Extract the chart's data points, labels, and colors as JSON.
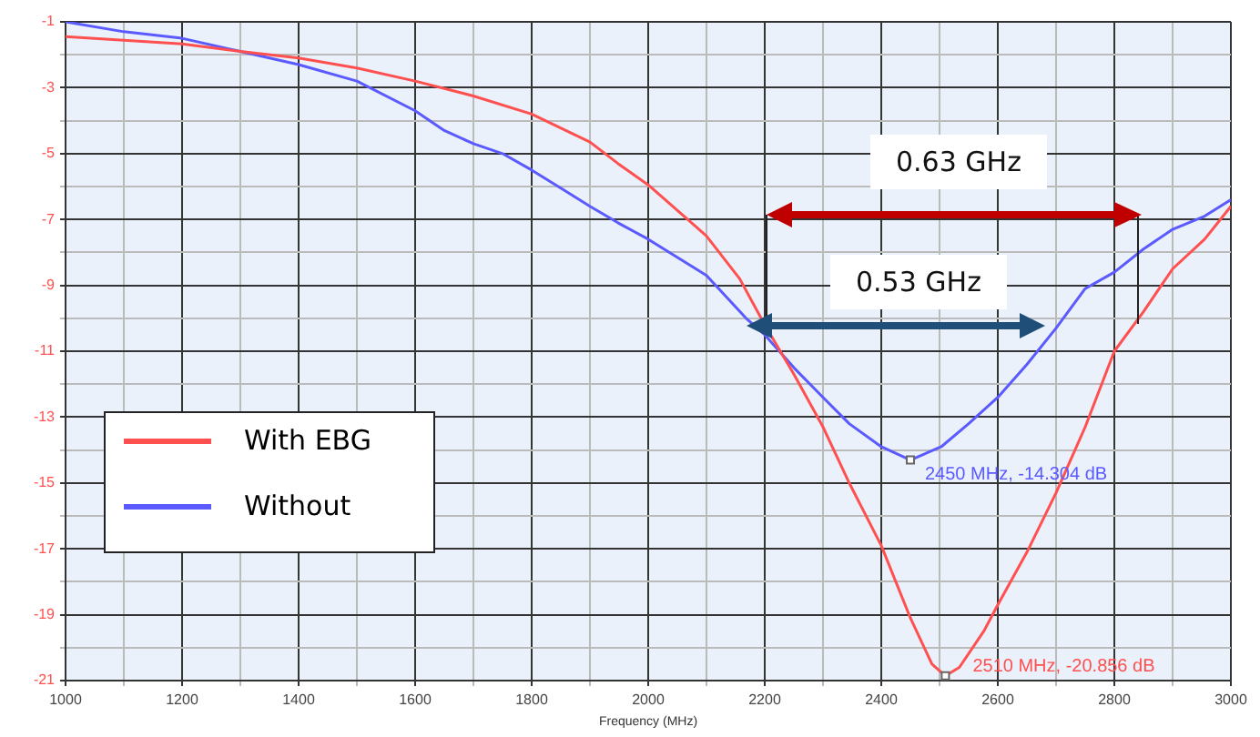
{
  "chart_data": {
    "type": "line",
    "xlabel": "Frequency (MHz)",
    "xlim": [
      1000,
      3000
    ],
    "xticks": [
      1000,
      {
        "value": 1100,
        "label": null
      },
      1200,
      {
        "value": 1300,
        "label": null
      },
      1400,
      {
        "value": 1500,
        "label": null
      },
      1600,
      {
        "value": 1700,
        "label": null
      },
      1800,
      {
        "value": 1900,
        "label": null
      },
      2000,
      {
        "value": 2100,
        "label": null
      },
      2200,
      {
        "value": 2300,
        "label": null
      },
      2400,
      {
        "value": 2500,
        "label": null
      },
      2600,
      {
        "value": 2700,
        "label": null
      },
      2800,
      {
        "value": 2900,
        "label": null
      },
      3000
    ],
    "ylim": [
      -21,
      -1
    ],
    "yticks": [
      -21,
      {
        "value": -20,
        "label": null
      },
      -19,
      {
        "value": -18,
        "label": null
      },
      -17,
      {
        "value": -16,
        "label": null
      },
      -15,
      {
        "value": -14,
        "label": null
      },
      -13,
      {
        "value": -12,
        "label": null
      },
      -11,
      {
        "value": -10,
        "label": null
      },
      -9,
      {
        "value": -8,
        "label": null
      },
      -7,
      {
        "value": -6,
        "label": null
      },
      -5,
      {
        "value": -4,
        "label": null
      },
      -3,
      {
        "value": -2,
        "label": null
      },
      -1
    ],
    "grid": true,
    "legend": "bottom left",
    "marker": "none",
    "line_style": "solid",
    "series": [
      {
        "name": "With EBG",
        "color": "#ff5050",
        "x": [
          1000,
          1200,
          1300,
          1400,
          1500,
          1600,
          1700,
          1800,
          1900,
          1948,
          2000,
          2100,
          2157,
          2200,
          2250,
          2300,
          2345,
          2400,
          2450,
          2487,
          2510,
          2534,
          2576,
          2600,
          2650,
          2700,
          2750,
          2800,
          2850,
          2900,
          2955,
          3000
        ],
        "values": [
          -1.45,
          -1.67,
          -1.9,
          -2.1,
          -2.4,
          -2.8,
          -3.25,
          -3.8,
          -4.65,
          -5.3,
          -5.95,
          -7.5,
          -8.8,
          -10.2,
          -11.7,
          -13.3,
          -15,
          -16.9,
          -19.1,
          -20.5,
          -20.856,
          -20.6,
          -19.5,
          -18.7,
          -17.1,
          -15.3,
          -13.3,
          -11,
          -9.8,
          -8.5,
          -7.6,
          -6.6
        ]
      },
      {
        "name": "Without",
        "color": "#5a5aff",
        "x": [
          1000,
          1100,
          1200,
          1300,
          1400,
          1500,
          1600,
          1650,
          1700,
          1750,
          1800,
          1850,
          1900,
          1948,
          2000,
          2100,
          2168,
          2200,
          2250,
          2300,
          2345,
          2400,
          2450,
          2503,
          2550,
          2600,
          2650,
          2700,
          2750,
          2800,
          2850,
          2900,
          2955,
          3000
        ],
        "values": [
          -1,
          -1.3,
          -1.5,
          -1.9,
          -2.3,
          -2.8,
          -3.7,
          -4.3,
          -4.7,
          -5,
          -5.5,
          -6.05,
          -6.6,
          -7.1,
          -7.6,
          -8.7,
          -10,
          -10.5,
          -11.5,
          -12.4,
          -13.2,
          -13.9,
          -14.304,
          -13.9,
          -13.2,
          -12.4,
          -11.4,
          -10.3,
          -9.1,
          -8.6,
          -7.9,
          -7.3,
          -6.9,
          -6.4
        ]
      }
    ],
    "annotations": [
      "0.63 GHz",
      "0.53 GHz",
      {
        "text": "2450 MHz, -14.304 dB",
        "x": 2450,
        "y": -14.304
      },
      {
        "text": "2510 MHz, -20.856 dB",
        "x": 2510,
        "y": -20.856
      }
    ]
  }
}
